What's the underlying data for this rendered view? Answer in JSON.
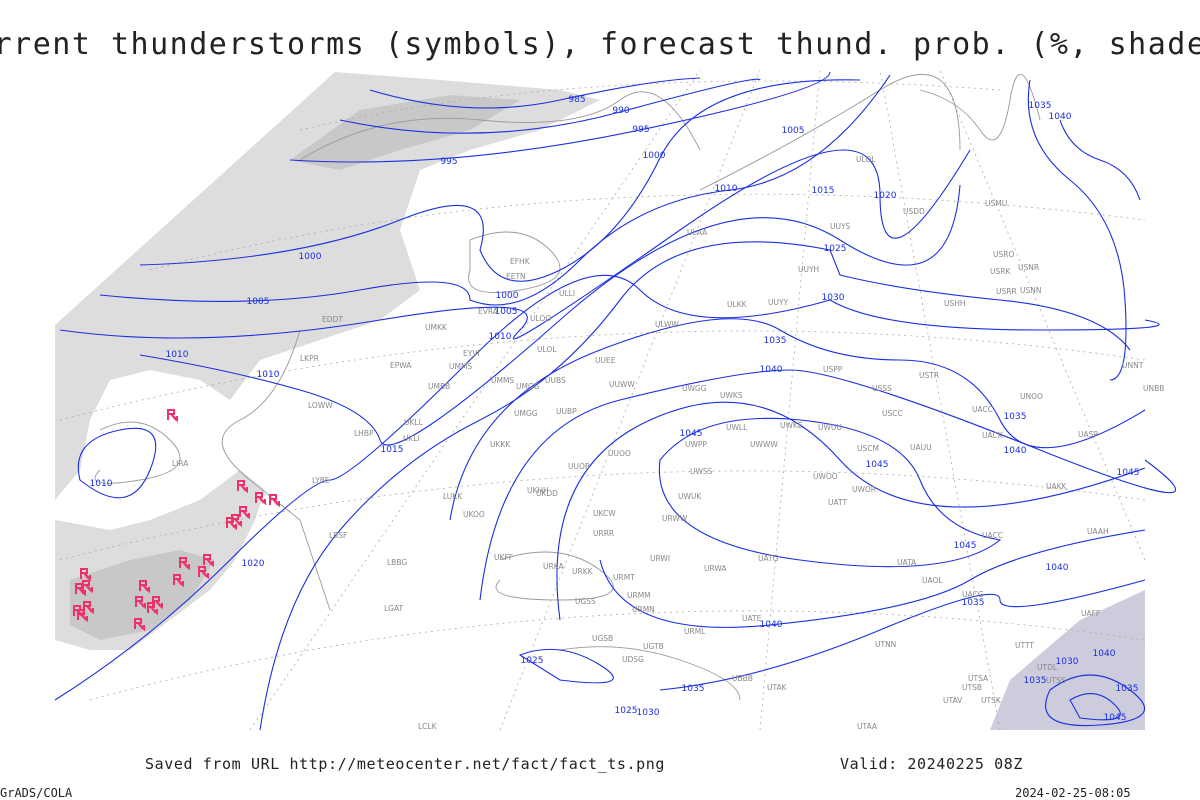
{
  "header": {
    "title": "Current thunderstorms (symbols), forecast thund. prob. (%, shaded)"
  },
  "map": {
    "isobar_labels": [
      "985",
      "990",
      "995",
      "1000",
      "1005",
      "995",
      "1010",
      "1015",
      "1020",
      "1025",
      "1030",
      "1035",
      "1040",
      "1000",
      "1005",
      "1000",
      "1005",
      "1010",
      "1010",
      "1010",
      "1010",
      "1015",
      "1020",
      "1045",
      "1045",
      "1040",
      "1035",
      "1045",
      "1045",
      "1040",
      "1040",
      "1035",
      "1035",
      "1030",
      "1025",
      "1025",
      "1035",
      "1040",
      "1030",
      "1035",
      "1040",
      "1035",
      "1045"
    ],
    "stations": [
      "ULOL",
      "USDD",
      "USMU",
      "ULAA",
      "UUYS",
      "USRO",
      "USRK",
      "USNR",
      "USRR",
      "USNN",
      "UUYH",
      "USHH",
      "ULKK",
      "UUYY",
      "EFHK",
      "EETN",
      "ULLI",
      "EVRA",
      "ULOO",
      "UMKK",
      "ULWW",
      "EDDT",
      "EYVI",
      "ULOL",
      "EPWA",
      "UMMS",
      "UUEE",
      "USTR",
      "UNNT",
      "UNBB",
      "USPP",
      "USSS",
      "UNOO",
      "UMBB",
      "UMMS",
      "UMGG",
      "UUBS",
      "UUWW",
      "UWGG",
      "UWKS",
      "USCC",
      "UACC",
      "UACK",
      "UASP",
      "LKPR",
      "LOWW",
      "UKLL",
      "UKLI",
      "UMGG",
      "UUBP",
      "UWLL",
      "UWKE",
      "UWUU",
      "UWWW",
      "USCM",
      "UAUU",
      "LHBP",
      "UKKK",
      "UUOO",
      "UWPP",
      "LIRA",
      "UUOB",
      "UWSS",
      "UWOO",
      "UATT",
      "UWOR",
      "UAKK",
      "UWUK",
      "LYBE",
      "LUKK",
      "UKHH",
      "UKDD",
      "URWW",
      "UKCW",
      "UKOO",
      "LBSF",
      "URRR",
      "UAAH",
      "UACC",
      "URWI",
      "UATG",
      "UATA",
      "UAOL",
      "LBBG",
      "UKFF",
      "URKA",
      "URKK",
      "URMT",
      "URWA",
      "UACG",
      "LGAT",
      "UGSS",
      "URMM",
      "URMN",
      "UATE",
      "UAFF",
      "UGSB",
      "UBBB",
      "UTAK",
      "UGTB",
      "UDSG",
      "UTNN",
      "UTTT",
      "UTSS",
      "UTDL",
      "UTSB",
      "UTAV",
      "UTSK",
      "UTSA",
      "UTAA",
      "LCLK",
      "URML"
    ]
  },
  "footer": {
    "saved_from": "Saved from URL http://meteocenter.net/fact/fact_ts.png",
    "valid": "Valid: 20240225 08Z",
    "software": "GrADS/COLA",
    "timestamp": "2024-02-25-08:05"
  }
}
